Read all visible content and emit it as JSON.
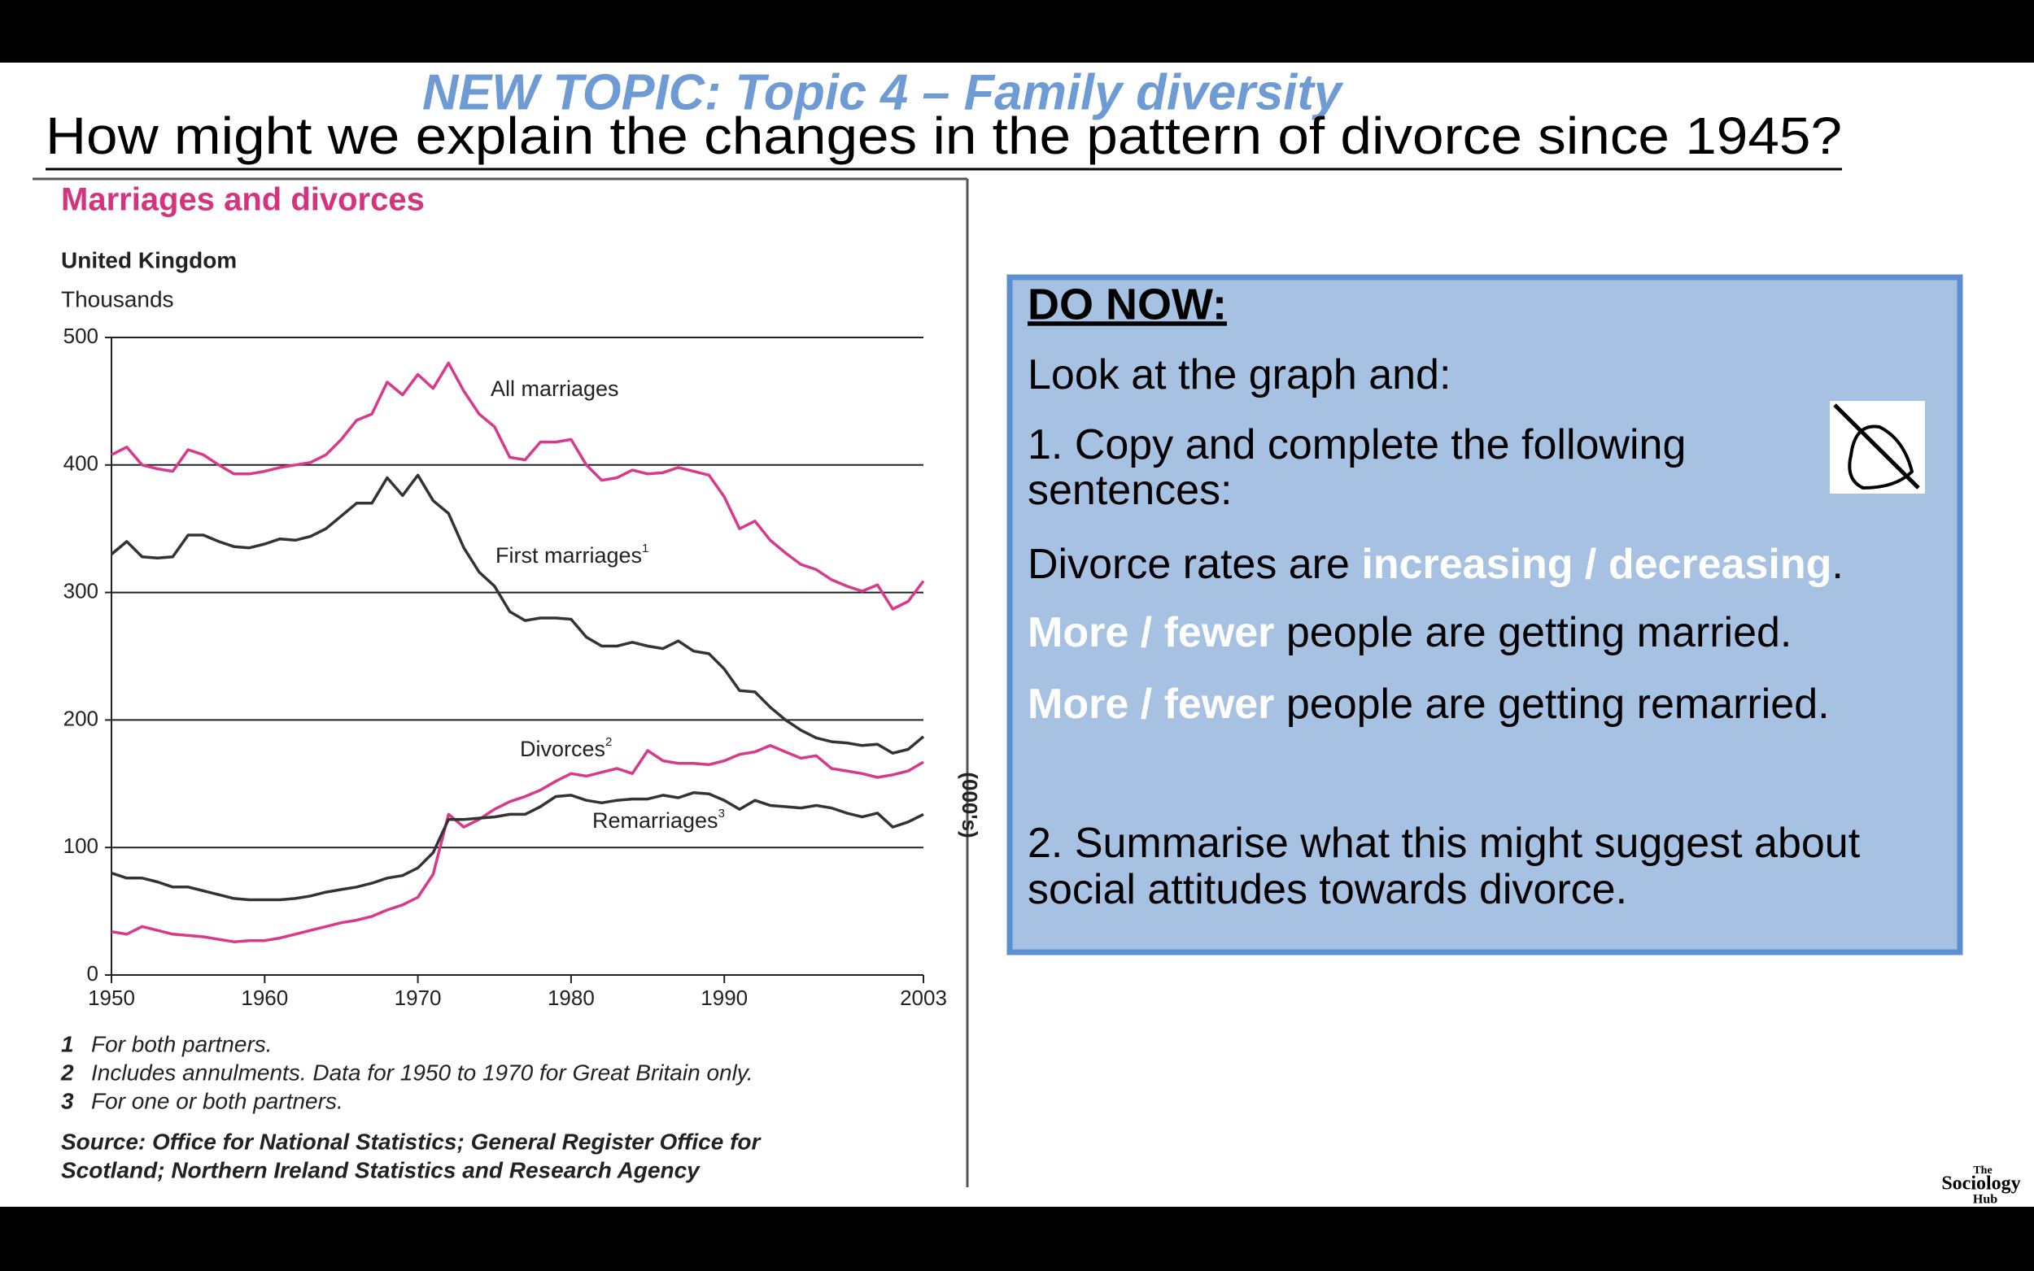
{
  "header": {
    "topic": "NEW TOPIC: Topic 4 – Family diversity",
    "question": "How might we explain the changes in the pattern of divorce since 1945?"
  },
  "chart_data": {
    "type": "line",
    "title": "Marriages and divorces",
    "subtitle": "United Kingdom",
    "ylabel": "Thousands",
    "side_label": "(000's)",
    "x": [
      1950,
      1951,
      1952,
      1953,
      1954,
      1955,
      1956,
      1957,
      1958,
      1959,
      1960,
      1961,
      1962,
      1963,
      1964,
      1965,
      1966,
      1967,
      1968,
      1969,
      1970,
      1971,
      1972,
      1973,
      1974,
      1975,
      1976,
      1977,
      1978,
      1979,
      1980,
      1981,
      1982,
      1983,
      1984,
      1985,
      1986,
      1987,
      1988,
      1989,
      1990,
      1991,
      1992,
      1993,
      1994,
      1995,
      1996,
      1997,
      1998,
      1999,
      2000,
      2001,
      2002,
      2003
    ],
    "xlim": [
      1950,
      2003
    ],
    "xticks": [
      1950,
      1960,
      1970,
      1980,
      1990,
      2003
    ],
    "ylim": [
      0,
      500
    ],
    "yticks": [
      0,
      100,
      200,
      300,
      400,
      500
    ],
    "grid": true,
    "series": [
      {
        "name": "All marriages",
        "color": "#d9398a",
        "values": [
          408,
          414,
          400,
          397,
          395,
          412,
          408,
          400,
          393,
          393,
          395,
          398,
          400,
          402,
          408,
          420,
          435,
          440,
          465,
          455,
          471,
          460,
          480,
          458,
          440,
          430,
          406,
          404,
          418,
          418,
          420,
          400,
          388,
          390,
          396,
          393,
          394,
          398,
          395,
          392,
          375,
          350,
          356,
          341,
          331,
          322,
          318,
          310,
          305,
          301,
          306,
          287,
          293,
          309
        ]
      },
      {
        "name": "First marriages",
        "superscript": "1",
        "color": "#333333",
        "values": [
          330,
          340,
          328,
          327,
          328,
          345,
          345,
          340,
          336,
          335,
          338,
          342,
          341,
          344,
          350,
          360,
          370,
          370,
          390,
          376,
          392,
          372,
          362,
          335,
          316,
          305,
          285,
          278,
          280,
          280,
          279,
          265,
          258,
          258,
          261,
          258,
          256,
          262,
          254,
          252,
          240,
          223,
          222,
          210,
          200,
          192,
          186,
          183,
          182,
          180,
          181,
          174,
          177,
          187
        ]
      },
      {
        "name": "Divorces",
        "superscript": "2",
        "color": "#d9398a",
        "values": [
          34,
          32,
          38,
          35,
          32,
          31,
          30,
          28,
          26,
          27,
          27,
          29,
          32,
          35,
          38,
          41,
          43,
          46,
          51,
          55,
          61,
          79,
          126,
          116,
          122,
          130,
          136,
          140,
          145,
          152,
          158,
          156,
          159,
          162,
          158,
          176,
          168,
          166,
          166,
          165,
          168,
          173,
          175,
          180,
          175,
          170,
          172,
          162,
          160,
          158,
          155,
          157,
          160,
          167
        ]
      },
      {
        "name": "Remarriages",
        "superscript": "3",
        "color": "#333333",
        "values": [
          80,
          76,
          76,
          73,
          69,
          69,
          66,
          63,
          60,
          59,
          59,
          59,
          60,
          62,
          65,
          67,
          69,
          72,
          76,
          78,
          84,
          96,
          122,
          122,
          123,
          124,
          126,
          126,
          132,
          140,
          141,
          137,
          135,
          137,
          138,
          138,
          141,
          139,
          143,
          142,
          137,
          130,
          137,
          133,
          132,
          131,
          133,
          131,
          127,
          124,
          127,
          116,
          120,
          126
        ]
      }
    ],
    "footnotes": [
      {
        "number": "1",
        "text": "For both partners."
      },
      {
        "number": "2",
        "text": "Includes annulments. Data for 1950 to 1970 for Great Britain only."
      },
      {
        "number": "3",
        "text": "For one or both partners."
      }
    ],
    "source": [
      "Source: Office for National Statistics; General Register Office for",
      "Scotland; Northern Ireland Statistics and Research Agency"
    ]
  },
  "panel": {
    "heading": "DO NOW:",
    "lines": [
      [
        {
          "text": "Look at the graph and:"
        }
      ],
      [
        {
          "text": "1. Copy and complete the following"
        }
      ],
      [
        {
          "text": "sentences:"
        }
      ],
      [
        {
          "text": "Divorce rates are "
        },
        {
          "text": "increasing / decreasing",
          "highlight": true
        },
        {
          "text": "."
        }
      ],
      [
        {
          "text": "More / fewer",
          "highlight": true
        },
        {
          "text": " people are getting married."
        }
      ],
      [
        {
          "text": "More / fewer",
          "highlight": true
        },
        {
          "text": " people are getting remarried."
        }
      ],
      [
        {
          "text": "2. Summarise what this might suggest about"
        }
      ],
      [
        {
          "text": "social attitudes towards divorce."
        }
      ]
    ]
  },
  "logo": [
    "The",
    "Sociology",
    "Hub"
  ]
}
